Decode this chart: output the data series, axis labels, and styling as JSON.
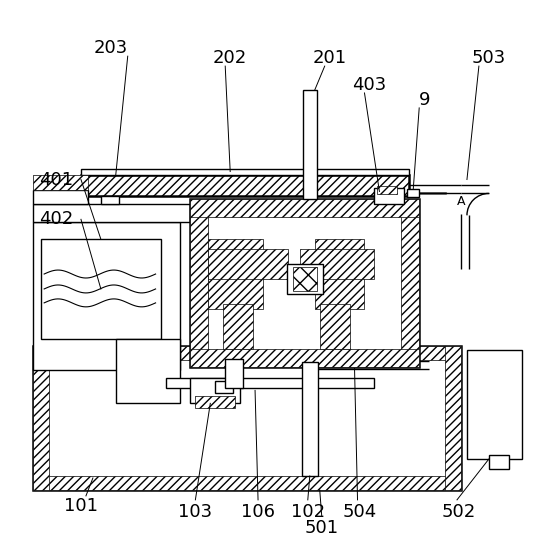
{
  "bg_color": "#ffffff",
  "line_color": "#000000",
  "font_size": 13,
  "font_size_small": 9
}
